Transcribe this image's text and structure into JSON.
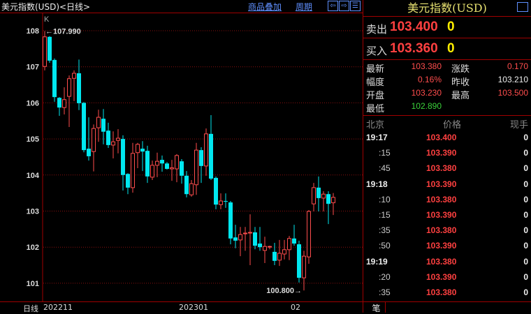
{
  "header": {
    "title": "美元指数(USD)<日线>",
    "overlay_link": "商品叠加",
    "period_link": "周期"
  },
  "right": {
    "title": "美元指数(USD)",
    "ask": {
      "label": "卖出",
      "price": "103.400",
      "volume": "0"
    },
    "bid": {
      "label": "买入",
      "price": "103.360",
      "volume": "0"
    },
    "stats": {
      "latest_label": "最新",
      "latest": "103.380",
      "change_label": "涨跌",
      "change": "0.170",
      "pct_label": "幅度",
      "pct": "0.16%",
      "prev_label": "昨收",
      "prev": "103.210",
      "open_label": "开盘",
      "open": "103.230",
      "high_label": "最高",
      "high": "103.500",
      "low_label": "最低",
      "low": "102.890"
    },
    "ticks_header": {
      "time": "北京",
      "price": "价格",
      "volume": "现手"
    },
    "ticks": [
      {
        "time": "19:17",
        "price": "103.400",
        "vol": "0"
      },
      {
        "time": ":15",
        "price": "103.390",
        "vol": "0"
      },
      {
        "time": ":45",
        "price": "103.380",
        "vol": "0"
      },
      {
        "time": "19:18",
        "price": "103.390",
        "vol": "0"
      },
      {
        "time": ":10",
        "price": "103.380",
        "vol": "0"
      },
      {
        "time": ":15",
        "price": "103.390",
        "vol": "0"
      },
      {
        "time": ":35",
        "price": "103.380",
        "vol": "0"
      },
      {
        "time": ":50",
        "price": "103.390",
        "vol": "0"
      },
      {
        "time": "19:19",
        "price": "103.380",
        "vol": "0"
      },
      {
        "time": ":20",
        "price": "103.390",
        "vol": "0"
      },
      {
        "time": ":35",
        "price": "103.380",
        "vol": "0"
      }
    ],
    "tab": "笔"
  },
  "colors": {
    "up": "#ff4d4d",
    "down": "#00e8f0",
    "grid": "#8a1010",
    "border": "#a00000",
    "link": "#5f8fff"
  },
  "chart_data": {
    "type": "candlestick",
    "indicator_label": "K",
    "period_label": "日线",
    "ylim": [
      100.7,
      108.5
    ],
    "yticks": [
      108,
      107,
      106,
      105,
      104,
      103,
      102,
      101
    ],
    "grid": true,
    "x_tick_labels": [
      {
        "label": "202211",
        "index": 0
      },
      {
        "label": "202301",
        "index": 28
      },
      {
        "label": "02",
        "index": 52
      }
    ],
    "annotations": [
      {
        "text": "←107.990",
        "index": 0,
        "value": 107.99
      },
      {
        "text": "100.800→",
        "index": 53,
        "value": 100.8
      }
    ],
    "candles_ohlc": [
      [
        107.01,
        107.99,
        106.9,
        107.83
      ],
      [
        107.83,
        107.85,
        107.11,
        107.17
      ],
      [
        107.19,
        107.23,
        106.03,
        106.16
      ],
      [
        106.14,
        106.16,
        105.64,
        105.87
      ],
      [
        105.87,
        106.43,
        105.68,
        106.09
      ],
      [
        106.18,
        106.76,
        105.33,
        106.67
      ],
      [
        106.68,
        106.9,
        106.05,
        106.82
      ],
      [
        106.82,
        107.2,
        105.8,
        105.99
      ],
      [
        106.0,
        106.02,
        104.63,
        104.69
      ],
      [
        104.73,
        105.6,
        104.4,
        104.52
      ],
      [
        104.65,
        105.4,
        104.1,
        105.29
      ],
      [
        105.31,
        105.81,
        104.92,
        105.6
      ],
      [
        105.56,
        105.83,
        104.85,
        105.2
      ],
      [
        105.23,
        105.45,
        104.75,
        104.83
      ],
      [
        104.83,
        105.21,
        104.46,
        104.92
      ],
      [
        104.96,
        105.27,
        104.6,
        105.02
      ],
      [
        105.0,
        105.1,
        103.57,
        104.0
      ],
      [
        104.03,
        104.05,
        103.47,
        103.65
      ],
      [
        103.65,
        104.89,
        103.51,
        104.6
      ],
      [
        104.62,
        104.89,
        104.19,
        104.85
      ],
      [
        104.73,
        104.94,
        104.11,
        104.65
      ],
      [
        104.67,
        104.81,
        103.78,
        103.96
      ],
      [
        103.94,
        104.4,
        103.86,
        104.27
      ],
      [
        104.27,
        104.62,
        103.94,
        104.38
      ],
      [
        104.42,
        104.54,
        104.09,
        104.32
      ],
      [
        104.32,
        104.36,
        104.15,
        104.17
      ],
      [
        104.17,
        104.42,
        103.84,
        104.2
      ],
      [
        104.17,
        104.58,
        103.8,
        104.54
      ],
      [
        104.38,
        104.44,
        103.76,
        103.98
      ],
      [
        103.98,
        104.11,
        103.38,
        103.47
      ],
      [
        103.45,
        103.86,
        103.4,
        103.76
      ],
      [
        103.73,
        104.89,
        103.45,
        104.69
      ],
      [
        104.69,
        104.77,
        103.78,
        104.25
      ],
      [
        104.25,
        105.29,
        103.98,
        105.14
      ],
      [
        105.14,
        105.66,
        103.86,
        103.9
      ],
      [
        103.92,
        103.96,
        103.05,
        103.18
      ],
      [
        103.18,
        103.49,
        103.05,
        103.28
      ],
      [
        103.28,
        103.49,
        103.09,
        103.26
      ],
      [
        103.24,
        103.28,
        102.08,
        102.24
      ],
      [
        102.27,
        102.62,
        101.97,
        102.18
      ],
      [
        102.2,
        102.56,
        101.75,
        102.35
      ],
      [
        102.37,
        102.56,
        101.9,
        102.39
      ],
      [
        102.39,
        102.91,
        101.5,
        102.41
      ],
      [
        102.41,
        102.56,
        101.94,
        102.04
      ],
      [
        102.1,
        102.56,
        101.9,
        102.0
      ],
      [
        101.91,
        102.29,
        101.56,
        102.02
      ],
      [
        102.01,
        102.04,
        101.94,
        102.02
      ],
      [
        101.87,
        102.12,
        101.5,
        101.62
      ],
      [
        101.64,
        102.2,
        101.48,
        101.83
      ],
      [
        101.81,
        102.2,
        101.66,
        101.93
      ],
      [
        101.93,
        102.31,
        101.64,
        102.24
      ],
      [
        102.24,
        102.62,
        102.04,
        102.1
      ],
      [
        102.08,
        102.18,
        101.02,
        101.15
      ],
      [
        101.15,
        101.9,
        100.8,
        101.75
      ],
      [
        101.73,
        103.03,
        101.54,
        102.99
      ],
      [
        103.2,
        103.78,
        102.99,
        103.65
      ],
      [
        103.65,
        103.96,
        102.99,
        103.36
      ],
      [
        103.36,
        103.55,
        102.99,
        103.47
      ],
      [
        103.47,
        103.55,
        102.64,
        103.2
      ],
      [
        103.23,
        103.5,
        102.89,
        103.38
      ]
    ]
  }
}
